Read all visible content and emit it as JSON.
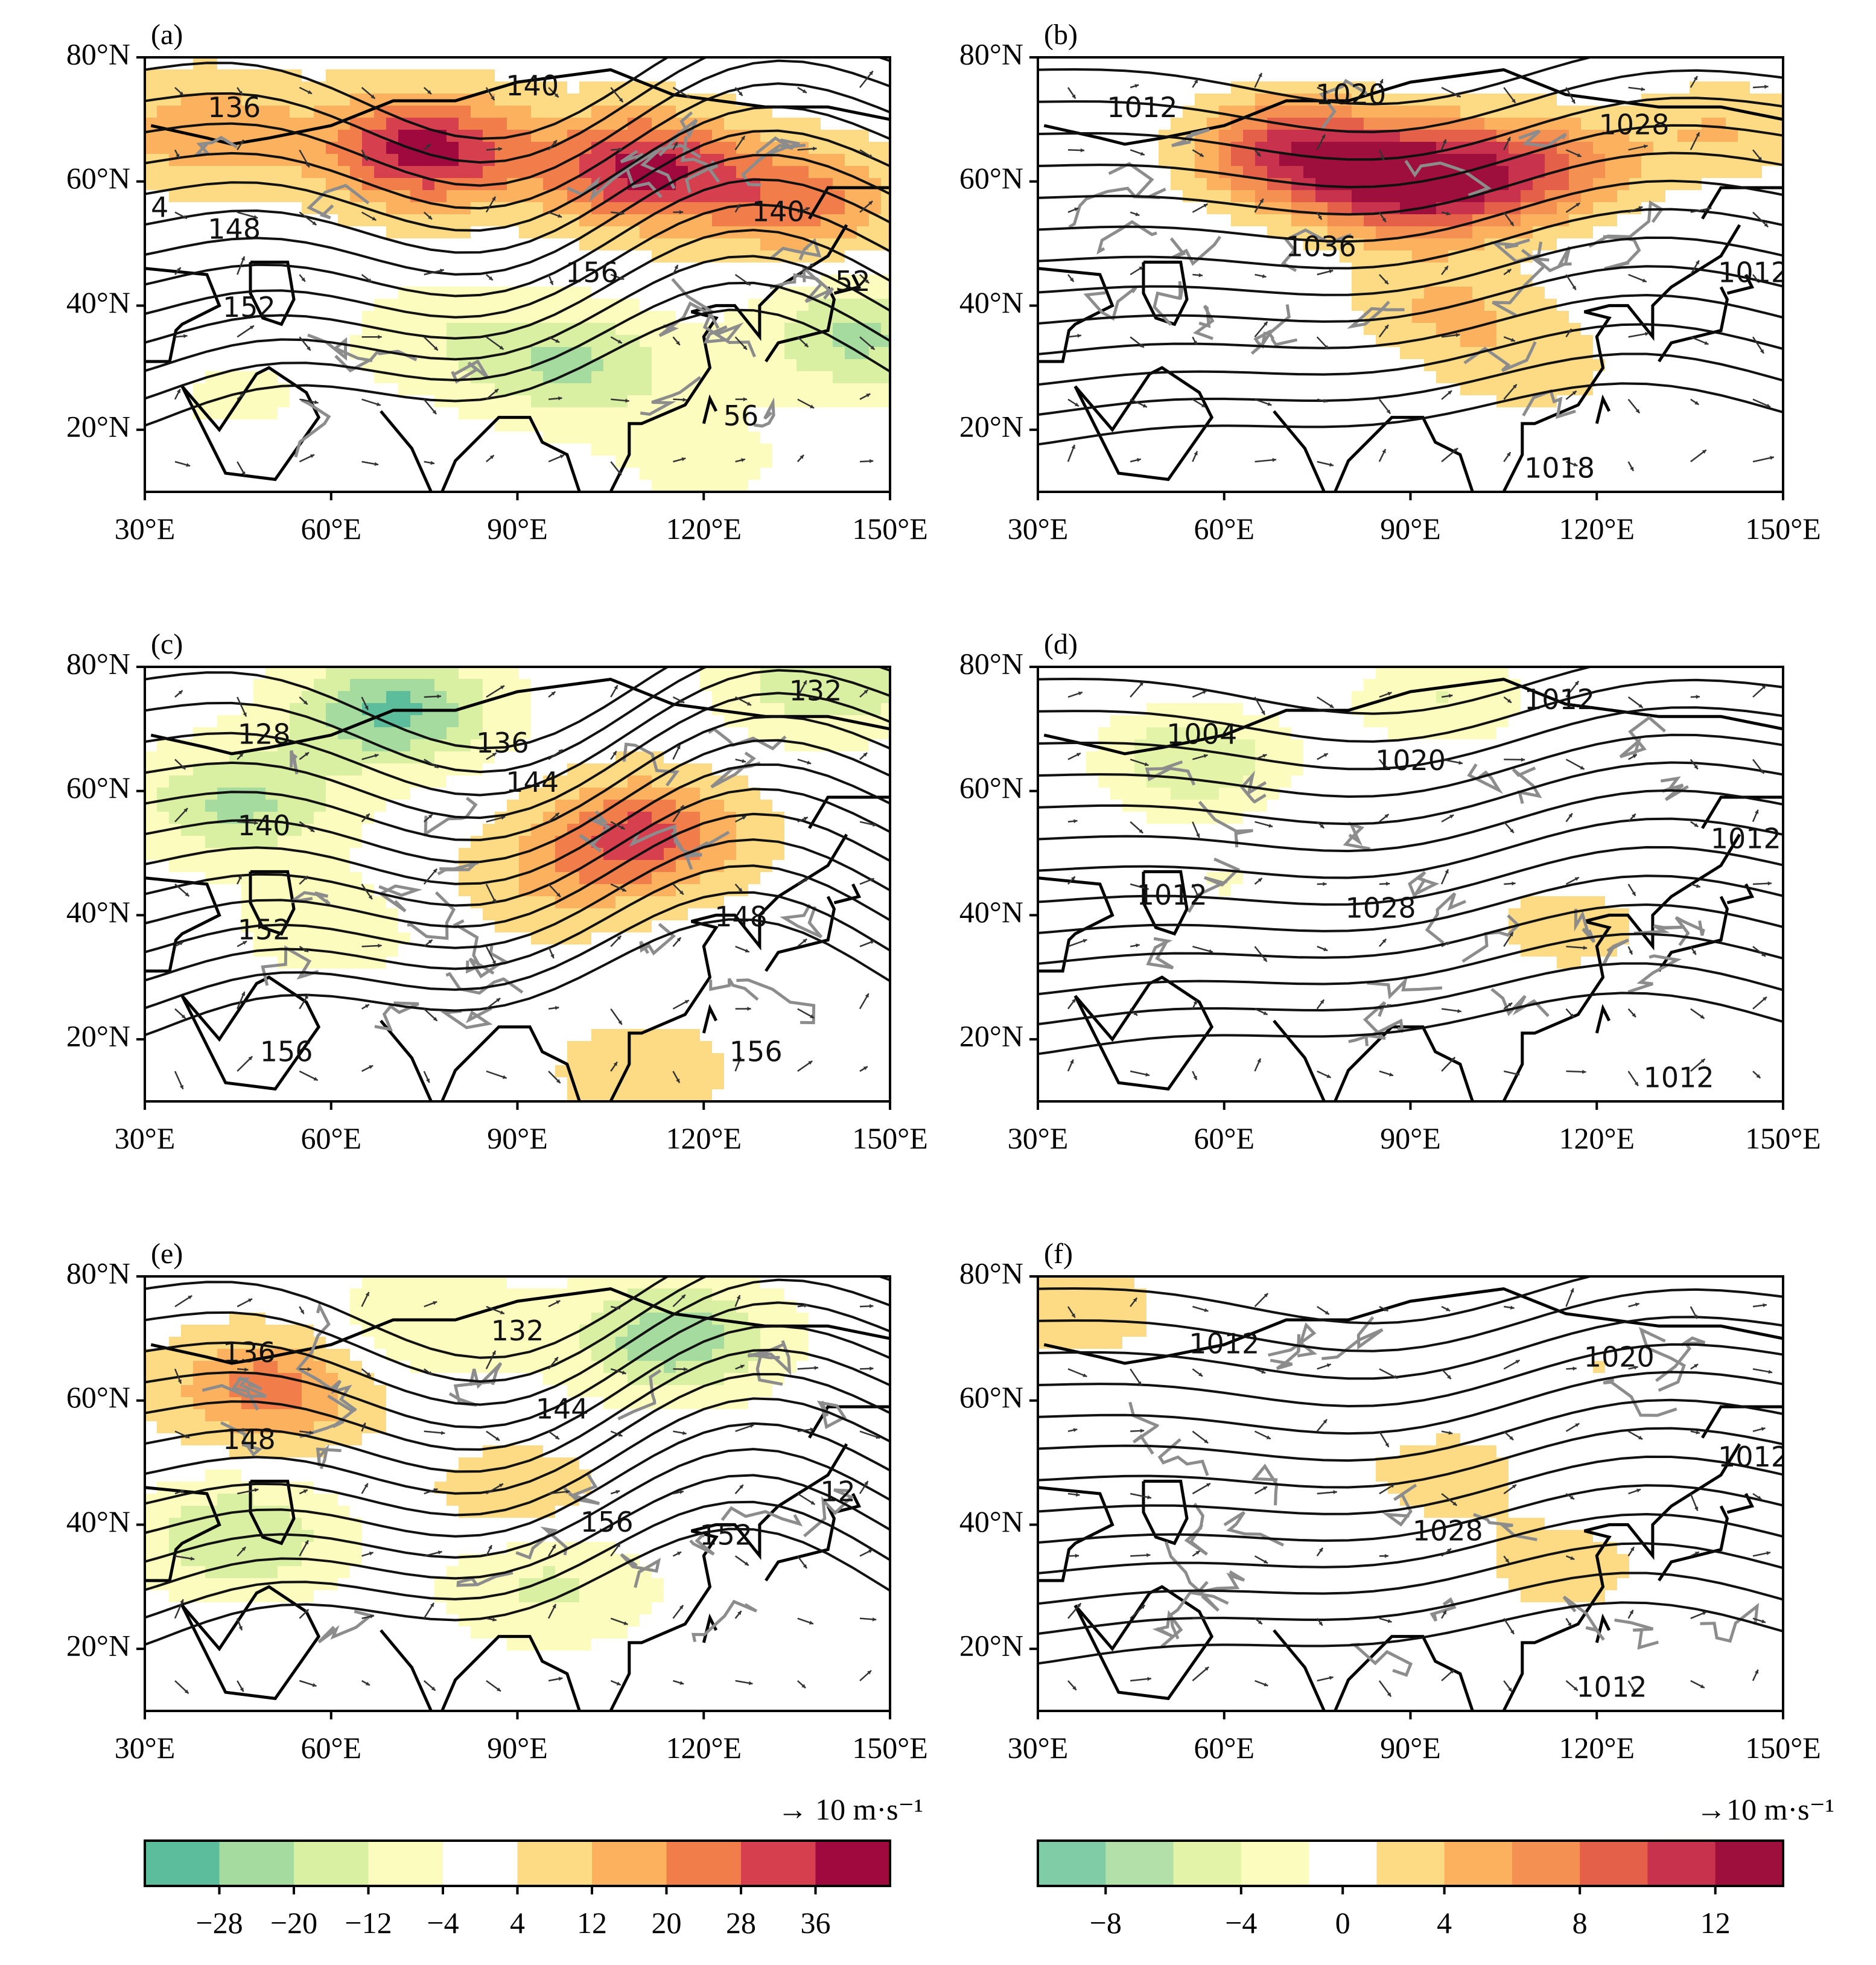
{
  "figure": {
    "x_ticks": [
      "30°E",
      "60°E",
      "90°E",
      "120°E",
      "150°E"
    ],
    "y_ticks": [
      "80°N",
      "60°N",
      "40°N",
      "20°N"
    ],
    "vector_reference_left": "→ 10 m·s⁻¹",
    "vector_reference_right": "→10 m·s⁻¹"
  },
  "chart_data": [
    {
      "type": "heatmap",
      "panel_label": "(a)",
      "x_range_degE": [
        30,
        150
      ],
      "y_range_degN": [
        10,
        80
      ],
      "contour_labels": [
        "136",
        "140",
        "148",
        "152",
        "156",
        "140",
        "56",
        "4",
        "52"
      ],
      "anomaly_scale": "left",
      "anomaly_centers": [
        {
          "lon": 75,
          "lat": 65,
          "value": 40
        },
        {
          "lon": 110,
          "lat": 62,
          "value": 38
        },
        {
          "lon": 135,
          "lat": 57,
          "value": 24
        },
        {
          "lon": 40,
          "lat": 68,
          "value": 18
        },
        {
          "lon": 80,
          "lat": 35,
          "value": -10
        },
        {
          "lon": 100,
          "lat": 30,
          "value": -20
        },
        {
          "lon": 145,
          "lat": 35,
          "value": -22
        },
        {
          "lon": 45,
          "lat": 25,
          "value": -5
        },
        {
          "lon": 120,
          "lat": 15,
          "value": -6
        }
      ]
    },
    {
      "type": "heatmap",
      "panel_label": "(b)",
      "x_range_degE": [
        30,
        150
      ],
      "y_range_degN": [
        10,
        80
      ],
      "contour_labels": [
        "1012",
        "1020",
        "1028",
        "1036",
        "1012",
        "1018"
      ],
      "anomaly_scale": "right",
      "anomaly_centers": [
        {
          "lon": 90,
          "lat": 60,
          "value": 13
        },
        {
          "lon": 70,
          "lat": 65,
          "value": 10
        },
        {
          "lon": 110,
          "lat": 62,
          "value": 8
        },
        {
          "lon": 140,
          "lat": 68,
          "value": 4
        },
        {
          "lon": 95,
          "lat": 40,
          "value": 4
        },
        {
          "lon": 110,
          "lat": 30,
          "value": 3
        }
      ]
    },
    {
      "type": "heatmap",
      "panel_label": "(c)",
      "x_range_degE": [
        30,
        150
      ],
      "y_range_degN": [
        10,
        80
      ],
      "contour_labels": [
        "128",
        "132",
        "136",
        "140",
        "144",
        "152",
        "156",
        "156",
        "148"
      ],
      "anomaly_scale": "left",
      "anomaly_centers": [
        {
          "lon": 70,
          "lat": 73,
          "value": -30
        },
        {
          "lon": 45,
          "lat": 58,
          "value": -22
        },
        {
          "lon": 110,
          "lat": 53,
          "value": 30
        },
        {
          "lon": 95,
          "lat": 45,
          "value": 10
        },
        {
          "lon": 60,
          "lat": 38,
          "value": -8
        },
        {
          "lon": 110,
          "lat": 15,
          "value": 8
        },
        {
          "lon": 140,
          "lat": 78,
          "value": -20
        }
      ]
    },
    {
      "type": "heatmap",
      "panel_label": "(d)",
      "x_range_degE": [
        30,
        150
      ],
      "y_range_degN": [
        10,
        80
      ],
      "contour_labels": [
        "1004",
        "1012",
        "1020",
        "1028",
        "1012",
        "1012",
        "1012"
      ],
      "anomaly_scale": "right",
      "anomaly_centers": [
        {
          "lon": 55,
          "lat": 65,
          "value": -6
        },
        {
          "lon": 95,
          "lat": 75,
          "value": -4
        },
        {
          "lon": 115,
          "lat": 38,
          "value": 3
        },
        {
          "lon": 60,
          "lat": 45,
          "value": -2
        }
      ]
    },
    {
      "type": "heatmap",
      "panel_label": "(e)",
      "x_range_degE": [
        30,
        150
      ],
      "y_range_degN": [
        10,
        80
      ],
      "contour_labels": [
        "136",
        "132",
        "148",
        "144",
        "156",
        "152",
        "12"
      ],
      "anomaly_scale": "left",
      "anomaly_centers": [
        {
          "lon": 50,
          "lat": 62,
          "value": 24
        },
        {
          "lon": 115,
          "lat": 70,
          "value": -26
        },
        {
          "lon": 75,
          "lat": 72,
          "value": -12
        },
        {
          "lon": 45,
          "lat": 38,
          "value": -20
        },
        {
          "lon": 95,
          "lat": 30,
          "value": -14
        },
        {
          "lon": 90,
          "lat": 45,
          "value": 8
        }
      ]
    },
    {
      "type": "heatmap",
      "panel_label": "(f)",
      "x_range_degE": [
        30,
        150
      ],
      "y_range_degN": [
        10,
        80
      ],
      "contour_labels": [
        "1012",
        "1020",
        "1028",
        "1012",
        "1012"
      ],
      "anomaly_scale": "right",
      "anomaly_centers": [
        {
          "lon": 35,
          "lat": 75,
          "value": 4
        },
        {
          "lon": 120,
          "lat": 65,
          "value": 2
        },
        {
          "lon": 95,
          "lat": 48,
          "value": 3
        },
        {
          "lon": 115,
          "lat": 33,
          "value": 3
        }
      ]
    }
  ],
  "colorbars": [
    {
      "side": "left",
      "bounds": [
        -36,
        -28,
        -20,
        -12,
        -4,
        4,
        12,
        20,
        28,
        36,
        44
      ],
      "tick_labels": [
        "−28",
        "−20",
        "−12",
        "−4",
        "4",
        "12",
        "20",
        "28",
        "36"
      ],
      "colors": [
        "#5bbd9c",
        "#a6dba0",
        "#d9f0a3",
        "#fdfcbf",
        "#ffffff",
        "#fddb85",
        "#fbb15e",
        "#f07d4a",
        "#d6404e",
        "#a0093d"
      ]
    },
    {
      "side": "right",
      "bounds": [
        -10,
        -8,
        -6,
        -4,
        -2,
        2,
        4,
        6,
        8,
        10,
        12,
        14
      ],
      "tick_labels": [
        "−8",
        "−4",
        "0",
        "4",
        "8",
        "12"
      ],
      "colors": [
        "#7fcca7",
        "#b2e0a8",
        "#e3f4a8",
        "#fdfcbf",
        "#ffffff",
        "#fddb85",
        "#fbb15e",
        "#f59053",
        "#e56048",
        "#c8324d",
        "#9e0f3d"
      ]
    }
  ]
}
